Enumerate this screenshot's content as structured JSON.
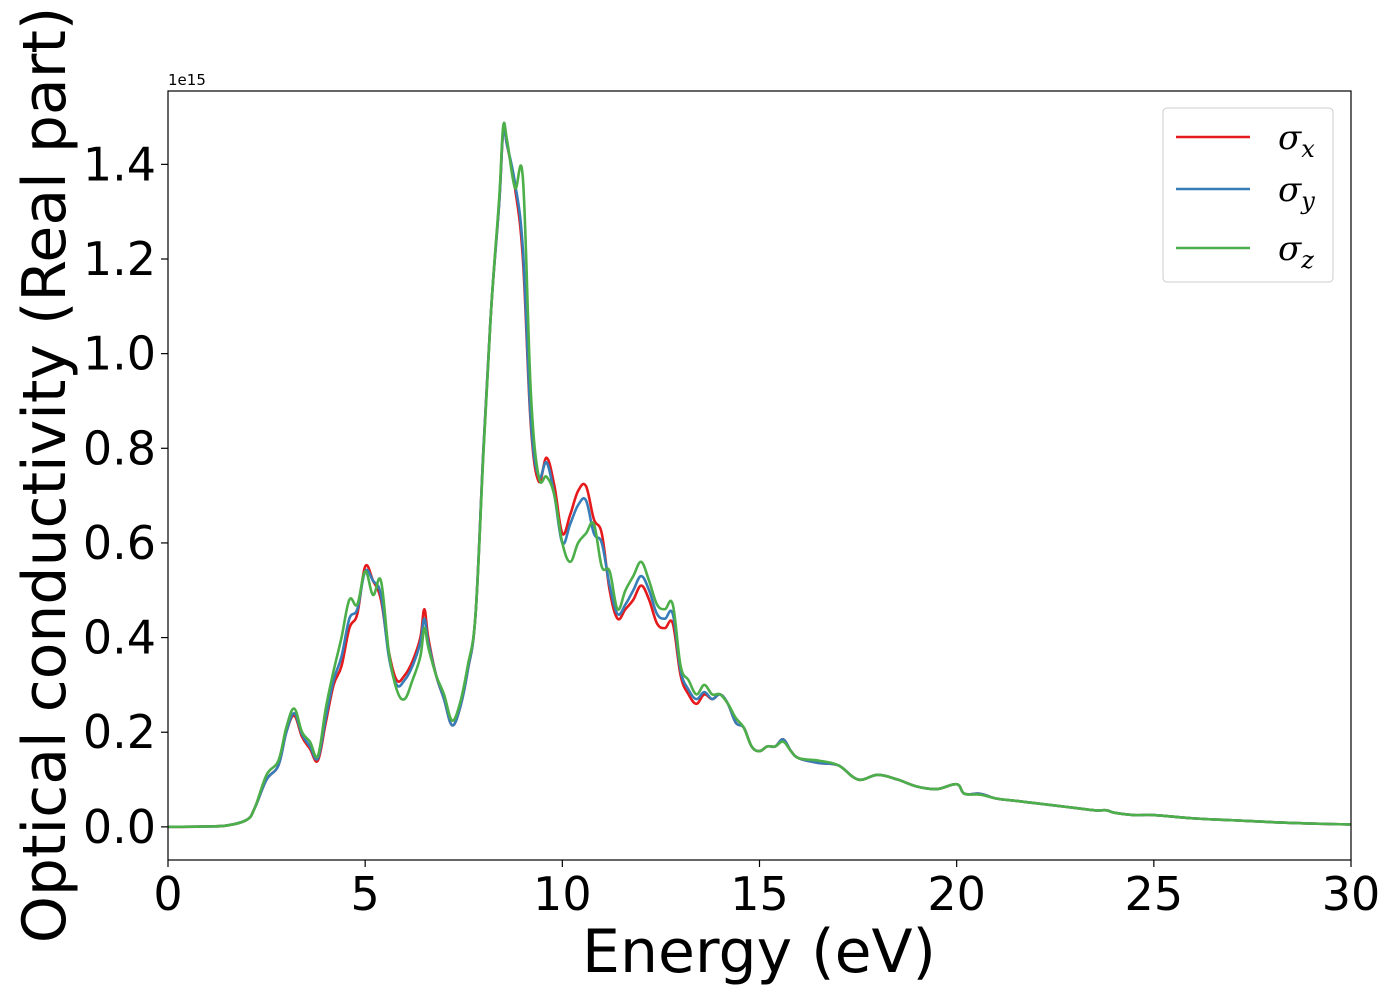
{
  "chart_data": {
    "type": "line",
    "xlabel": "Energy (eV)",
    "ylabel": "Optical conductivity (Real part)",
    "y_offset_text": "1e15",
    "xlim": [
      0,
      30
    ],
    "ylim": [
      -0.07,
      1.555
    ],
    "xticks": [
      0,
      5,
      10,
      15,
      20,
      25,
      30
    ],
    "xtick_labels": [
      "0",
      "5",
      "10",
      "15",
      "20",
      "25",
      "30"
    ],
    "yticks": [
      0.0,
      0.2,
      0.4,
      0.6,
      0.8,
      1.0,
      1.2,
      1.4
    ],
    "ytick_labels": [
      "0.0",
      "0.2",
      "0.4",
      "0.6",
      "0.8",
      "1.0",
      "1.2",
      "1.4"
    ],
    "grid": false,
    "legend_position": "top-right",
    "series": [
      {
        "name": "σ",
        "subscript": "x",
        "color": "#e41a1c",
        "x": [
          0,
          1,
          1.5,
          2.0,
          2.2,
          2.5,
          2.8,
          3.0,
          3.2,
          3.4,
          3.6,
          3.8,
          4.0,
          4.2,
          4.4,
          4.6,
          4.8,
          5.0,
          5.2,
          5.4,
          5.6,
          5.8,
          6.0,
          6.2,
          6.4,
          6.5,
          6.6,
          6.8,
          7.0,
          7.2,
          7.4,
          7.6,
          7.8,
          8.0,
          8.2,
          8.4,
          8.5,
          8.6,
          8.8,
          9.0,
          9.2,
          9.4,
          9.6,
          9.8,
          10.0,
          10.2,
          10.4,
          10.6,
          10.8,
          11.0,
          11.2,
          11.4,
          11.6,
          11.8,
          12.0,
          12.2,
          12.4,
          12.6,
          12.8,
          13.0,
          13.2,
          13.4,
          13.6,
          13.8,
          14.0,
          14.2,
          14.4,
          14.6,
          14.8,
          15.0,
          15.2,
          15.4,
          15.6,
          15.8,
          16.0,
          16.5,
          17.0,
          17.5,
          18.0,
          18.5,
          19.0,
          19.5,
          20.0,
          20.2,
          20.6,
          21.0,
          21.5,
          22.0,
          22.5,
          23.0,
          23.5,
          23.8,
          24.0,
          24.5,
          25.0,
          26.0,
          27.0,
          28.0,
          29.0,
          30.0
        ],
        "y": [
          0.0,
          0.001,
          0.003,
          0.015,
          0.04,
          0.1,
          0.13,
          0.2,
          0.235,
          0.19,
          0.165,
          0.14,
          0.22,
          0.3,
          0.34,
          0.42,
          0.45,
          0.55,
          0.52,
          0.48,
          0.37,
          0.31,
          0.32,
          0.35,
          0.4,
          0.46,
          0.4,
          0.32,
          0.27,
          0.215,
          0.25,
          0.33,
          0.45,
          0.8,
          1.1,
          1.32,
          1.47,
          1.44,
          1.35,
          1.2,
          0.85,
          0.73,
          0.78,
          0.72,
          0.62,
          0.66,
          0.71,
          0.72,
          0.65,
          0.62,
          0.5,
          0.44,
          0.46,
          0.48,
          0.51,
          0.48,
          0.43,
          0.42,
          0.43,
          0.32,
          0.28,
          0.26,
          0.28,
          0.27,
          0.28,
          0.26,
          0.22,
          0.21,
          0.17,
          0.16,
          0.17,
          0.17,
          0.185,
          0.16,
          0.145,
          0.135,
          0.13,
          0.1,
          0.11,
          0.1,
          0.085,
          0.08,
          0.09,
          0.07,
          0.07,
          0.06,
          0.055,
          0.05,
          0.045,
          0.04,
          0.035,
          0.035,
          0.03,
          0.025,
          0.025,
          0.018,
          0.014,
          0.01,
          0.007,
          0.005
        ]
      },
      {
        "name": "σ",
        "subscript": "y",
        "color": "#377eb8",
        "x": [
          0,
          1,
          1.5,
          2.0,
          2.2,
          2.5,
          2.8,
          3.0,
          3.2,
          3.4,
          3.6,
          3.8,
          4.0,
          4.2,
          4.4,
          4.6,
          4.8,
          5.0,
          5.2,
          5.4,
          5.6,
          5.8,
          6.0,
          6.2,
          6.4,
          6.5,
          6.6,
          6.8,
          7.0,
          7.2,
          7.4,
          7.6,
          7.8,
          8.0,
          8.2,
          8.4,
          8.5,
          8.6,
          8.8,
          9.0,
          9.2,
          9.4,
          9.6,
          9.8,
          10.0,
          10.2,
          10.4,
          10.6,
          10.8,
          11.0,
          11.2,
          11.4,
          11.6,
          11.8,
          12.0,
          12.2,
          12.4,
          12.6,
          12.8,
          13.0,
          13.2,
          13.4,
          13.6,
          13.8,
          14.0,
          14.2,
          14.4,
          14.6,
          14.8,
          15.0,
          15.2,
          15.4,
          15.6,
          15.8,
          16.0,
          16.5,
          17.0,
          17.5,
          18.0,
          18.5,
          19.0,
          19.5,
          20.0,
          20.2,
          20.6,
          21.0,
          21.5,
          22.0,
          22.5,
          23.0,
          23.5,
          23.8,
          24.0,
          24.5,
          25.0,
          26.0,
          27.0,
          28.0,
          29.0,
          30.0
        ],
        "y": [
          0.0,
          0.001,
          0.003,
          0.015,
          0.04,
          0.1,
          0.13,
          0.2,
          0.24,
          0.195,
          0.17,
          0.145,
          0.23,
          0.31,
          0.36,
          0.44,
          0.46,
          0.54,
          0.52,
          0.49,
          0.36,
          0.3,
          0.31,
          0.34,
          0.39,
          0.44,
          0.39,
          0.32,
          0.27,
          0.215,
          0.25,
          0.33,
          0.45,
          0.8,
          1.1,
          1.32,
          1.47,
          1.44,
          1.36,
          1.22,
          0.86,
          0.74,
          0.77,
          0.7,
          0.6,
          0.64,
          0.68,
          0.69,
          0.62,
          0.6,
          0.51,
          0.45,
          0.47,
          0.5,
          0.53,
          0.5,
          0.45,
          0.44,
          0.45,
          0.33,
          0.29,
          0.27,
          0.285,
          0.27,
          0.28,
          0.26,
          0.22,
          0.21,
          0.17,
          0.16,
          0.17,
          0.17,
          0.185,
          0.16,
          0.145,
          0.135,
          0.13,
          0.1,
          0.11,
          0.1,
          0.085,
          0.08,
          0.09,
          0.07,
          0.07,
          0.06,
          0.055,
          0.05,
          0.045,
          0.04,
          0.035,
          0.035,
          0.03,
          0.025,
          0.025,
          0.018,
          0.014,
          0.01,
          0.007,
          0.005
        ]
      },
      {
        "name": "σ",
        "subscript": "z",
        "color": "#4daf4a",
        "x": [
          0,
          1,
          1.5,
          2.0,
          2.2,
          2.5,
          2.8,
          3.0,
          3.2,
          3.4,
          3.6,
          3.8,
          4.0,
          4.2,
          4.4,
          4.6,
          4.8,
          5.0,
          5.2,
          5.4,
          5.6,
          5.8,
          6.0,
          6.2,
          6.4,
          6.5,
          6.6,
          6.8,
          7.0,
          7.2,
          7.4,
          7.6,
          7.8,
          8.0,
          8.2,
          8.4,
          8.5,
          8.6,
          8.8,
          9.0,
          9.2,
          9.4,
          9.6,
          9.8,
          10.0,
          10.2,
          10.4,
          10.6,
          10.8,
          11.0,
          11.2,
          11.4,
          11.6,
          11.8,
          12.0,
          12.2,
          12.4,
          12.6,
          12.8,
          13.0,
          13.2,
          13.4,
          13.6,
          13.8,
          14.0,
          14.2,
          14.4,
          14.6,
          14.8,
          15.0,
          15.2,
          15.4,
          15.6,
          15.8,
          16.0,
          16.5,
          17.0,
          17.5,
          18.0,
          18.5,
          19.0,
          19.5,
          20.0,
          20.2,
          20.6,
          21.0,
          21.5,
          22.0,
          22.5,
          23.0,
          23.5,
          23.8,
          24.0,
          24.5,
          25.0,
          26.0,
          27.0,
          28.0,
          29.0,
          30.0
        ],
        "y": [
          0.0,
          0.001,
          0.003,
          0.015,
          0.04,
          0.11,
          0.14,
          0.21,
          0.25,
          0.2,
          0.18,
          0.15,
          0.25,
          0.33,
          0.4,
          0.48,
          0.47,
          0.54,
          0.49,
          0.52,
          0.37,
          0.29,
          0.27,
          0.31,
          0.36,
          0.42,
          0.38,
          0.32,
          0.28,
          0.225,
          0.26,
          0.34,
          0.45,
          0.79,
          1.1,
          1.33,
          1.48,
          1.45,
          1.35,
          1.37,
          0.92,
          0.74,
          0.74,
          0.7,
          0.6,
          0.56,
          0.6,
          0.62,
          0.64,
          0.55,
          0.54,
          0.46,
          0.5,
          0.53,
          0.56,
          0.52,
          0.47,
          0.46,
          0.47,
          0.34,
          0.31,
          0.28,
          0.3,
          0.28,
          0.28,
          0.26,
          0.23,
          0.21,
          0.17,
          0.16,
          0.17,
          0.17,
          0.18,
          0.16,
          0.145,
          0.14,
          0.13,
          0.1,
          0.11,
          0.1,
          0.085,
          0.08,
          0.09,
          0.07,
          0.068,
          0.06,
          0.055,
          0.05,
          0.045,
          0.04,
          0.035,
          0.035,
          0.03,
          0.025,
          0.025,
          0.018,
          0.014,
          0.01,
          0.007,
          0.005
        ]
      }
    ]
  }
}
